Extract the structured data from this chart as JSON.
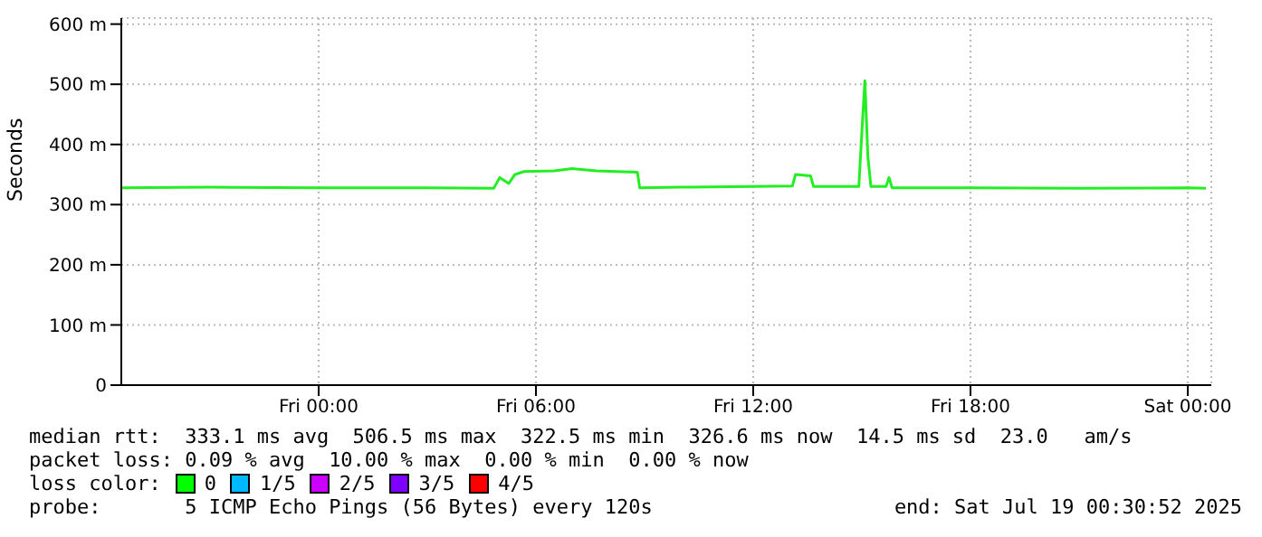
{
  "chart_data": {
    "type": "line",
    "ylabel": "Seconds",
    "x": [
      "2025-07-17T18:33",
      "2025-07-17T21:00",
      "2025-07-18T00:00",
      "2025-07-18T03:00",
      "2025-07-18T04:50",
      "2025-07-18T05:00",
      "2025-07-18T05:15",
      "2025-07-18T05:25",
      "2025-07-18T05:40",
      "2025-07-18T06:30",
      "2025-07-18T07:00",
      "2025-07-18T07:40",
      "2025-07-18T08:48",
      "2025-07-18T08:52",
      "2025-07-18T10:00",
      "2025-07-18T12:00",
      "2025-07-18T13:05",
      "2025-07-18T13:10",
      "2025-07-18T13:35",
      "2025-07-18T13:40",
      "2025-07-18T14:55",
      "2025-07-18T15:00",
      "2025-07-18T15:05",
      "2025-07-18T15:10",
      "2025-07-18T15:15",
      "2025-07-18T15:40",
      "2025-07-18T15:45",
      "2025-07-18T15:50",
      "2025-07-18T18:00",
      "2025-07-18T21:00",
      "2025-07-19T00:00",
      "2025-07-19T00:30"
    ],
    "series": [
      {
        "color": "#22ee22",
        "values": [
          328,
          329,
          328,
          328,
          327,
          345,
          335,
          350,
          355,
          356,
          360,
          356,
          354,
          328,
          329,
          330,
          331,
          350,
          348,
          330,
          330,
          420,
          506,
          380,
          330,
          330,
          345,
          328,
          328,
          327,
          328,
          327
        ]
      }
    ],
    "xlim": [
      "2025-07-17T18:33",
      "2025-07-19T00:39"
    ],
    "xticks": [
      {
        "value": "2025-07-18T00:00",
        "label": "Fri 00:00"
      },
      {
        "value": "2025-07-18T06:00",
        "label": "Fri 06:00"
      },
      {
        "value": "2025-07-18T12:00",
        "label": "Fri 12:00"
      },
      {
        "value": "2025-07-18T18:00",
        "label": "Fri 18:00"
      },
      {
        "value": "2025-07-19T00:00",
        "label": "Sat 00:00"
      }
    ],
    "ylim": [
      0,
      610
    ],
    "yticks": [
      0,
      {
        "value": 100,
        "label": "100 m"
      },
      {
        "value": 200,
        "label": "200 m"
      },
      {
        "value": 300,
        "label": "300 m"
      },
      {
        "value": 400,
        "label": "400 m"
      },
      {
        "value": 500,
        "label": "500 m"
      },
      {
        "value": 600,
        "label": "600 m"
      }
    ],
    "grid": true,
    "legend": false,
    "marker": "none",
    "line_style": "solid",
    "annotations": [
      "median rtt:  333.1 ms avg  506.5 ms max  322.5 ms min  326.6 ms now  14.5 ms sd  23.0   am/s",
      "packet loss: 0.09 % avg  10.00 % max  0.00 % min  0.00 % now",
      "loss color:",
      "0",
      "1/5",
      "2/5",
      "3/5",
      "4/5",
      "probe:       5 ICMP Echo Pings (56 Bytes) every 120s",
      "end: Sat Jul 19 00:30:52 2025"
    ]
  }
}
